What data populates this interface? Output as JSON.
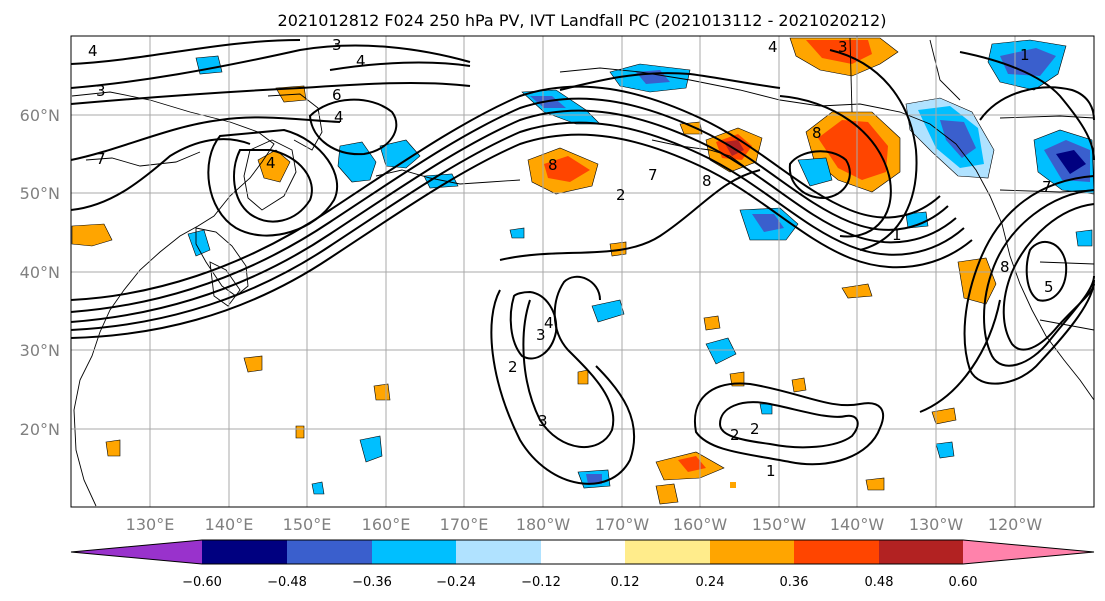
{
  "title": "2021012812 F024 250 hPa PV, IVT Landfall PC (2021013112 - 2021020212)",
  "lat_labels": [
    "60°N",
    "50°N",
    "40°N",
    "30°N",
    "20°N"
  ],
  "lon_labels": [
    "130°E",
    "140°E",
    "150°E",
    "160°E",
    "170°E",
    "180°W",
    "170°W",
    "160°W",
    "150°W",
    "140°W",
    "130°W",
    "120°W"
  ],
  "contour_labels": [
    "4",
    "3",
    "4",
    "3",
    "6",
    "4",
    "7",
    "4",
    "8",
    "7",
    "8",
    "2",
    "1",
    "4",
    "2",
    "3",
    "3",
    "2",
    "1",
    "2",
    "8",
    "5",
    "7",
    "4",
    "3",
    "8",
    "1"
  ],
  "colorbar": {
    "tick_labels": [
      "−0.60",
      "−0.48",
      "−0.36",
      "−0.24",
      "−0.12",
      "0.12",
      "0.24",
      "0.36",
      "0.48",
      "0.60"
    ],
    "colors": [
      "#9932cc",
      "#000080",
      "#3a5fcd",
      "#00bfff",
      "#b0e2ff",
      "#ffffff",
      "#ffec8b",
      "#ffa500",
      "#ff4500",
      "#b22222",
      "#ff82ab"
    ]
  },
  "colors": {
    "neg_strong": "#3a5fcd",
    "neg_mid": "#00bfff",
    "neg_weak": "#b0e2ff",
    "pos_weak": "#ffec8b",
    "pos_mid": "#ffa500",
    "pos_strong": "#ff4500",
    "pos_extreme": "#b22222",
    "neg_extreme": "#000080"
  }
}
